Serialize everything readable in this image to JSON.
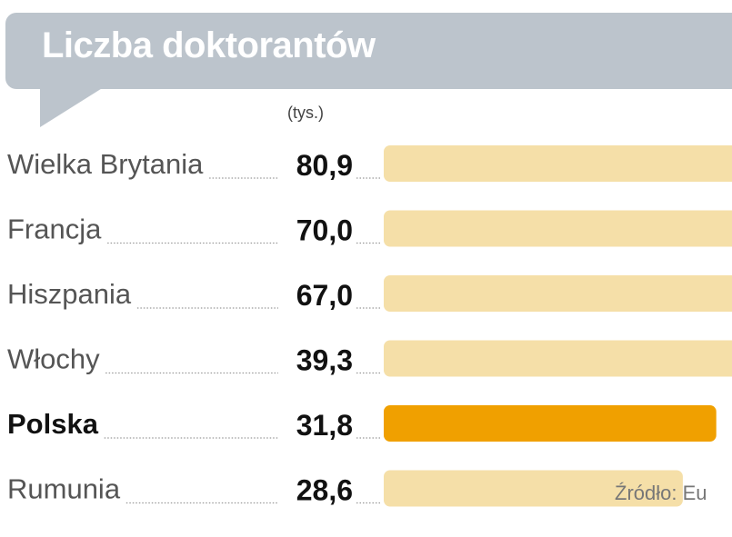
{
  "chart_data": {
    "type": "bar",
    "orientation": "horizontal",
    "title": "Liczba doktorantów",
    "unit": "(tys.)",
    "categories": [
      "Wielka Brytania",
      "Francja",
      "Hiszpania",
      "Włochy",
      "Polska",
      "Rumunia"
    ],
    "values": [
      80.9,
      70.0,
      67.0,
      39.3,
      31.8,
      28.6
    ],
    "value_labels": [
      "80,9",
      "70,0",
      "67,0",
      "39,3",
      "31,8",
      "28,6"
    ],
    "highlight": "Polska",
    "colors": {
      "bar": "#f5dfa8",
      "highlight_bar": "#f0a000",
      "title_bg": "#bcc4cc",
      "leader": "#999999"
    },
    "source": "Źródło: Eu"
  }
}
